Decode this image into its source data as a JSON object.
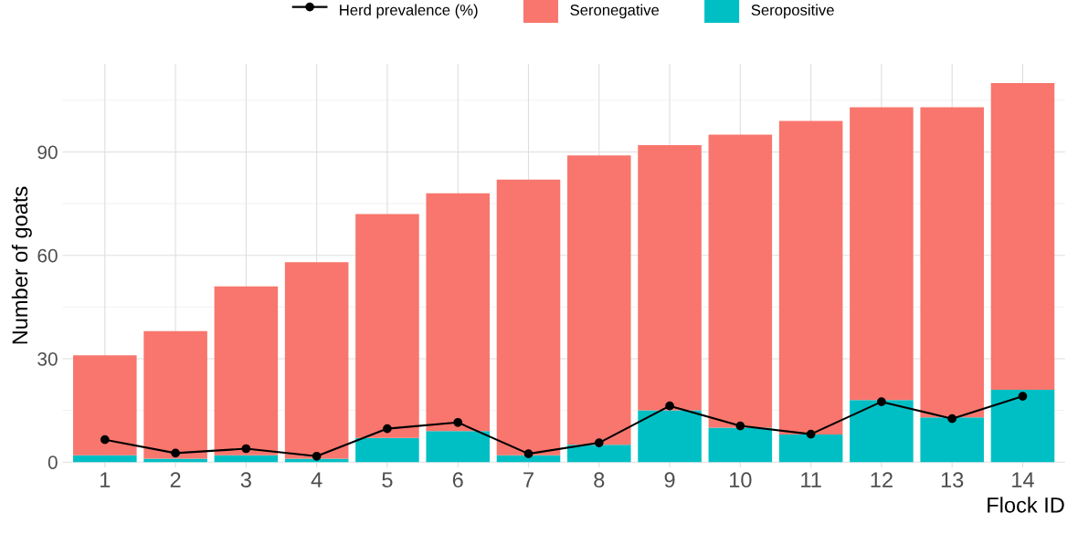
{
  "chart_data": {
    "type": "bar",
    "stacked": true,
    "xlabel": "Flock ID",
    "ylabel": "Number of goats",
    "categories": [
      "1",
      "2",
      "3",
      "4",
      "5",
      "6",
      "7",
      "8",
      "9",
      "10",
      "11",
      "12",
      "13",
      "14"
    ],
    "series": [
      {
        "name": "Seropositive",
        "color": "#00bfc4",
        "values": [
          2,
          1,
          2,
          1,
          7,
          9,
          2,
          5,
          15,
          10,
          8,
          18,
          13,
          21
        ]
      },
      {
        "name": "Seronegative",
        "color": "#f8766d",
        "values": [
          29,
          37,
          49,
          57,
          65,
          69,
          80,
          84,
          77,
          85,
          91,
          85,
          90,
          89
        ]
      },
      {
        "name": "Herd prevalence (%)",
        "type": "line",
        "color": "#000000",
        "marker": "circle",
        "line_style": "solid",
        "values": [
          6.5,
          2.6,
          3.9,
          1.7,
          9.7,
          11.5,
          2.4,
          5.6,
          16.3,
          10.5,
          8.1,
          17.5,
          12.6,
          19.1
        ]
      }
    ],
    "ylim": [
      -1.5,
      115.5
    ],
    "yticks": [
      0,
      30,
      60,
      90
    ],
    "grid": true,
    "legend": "top"
  }
}
